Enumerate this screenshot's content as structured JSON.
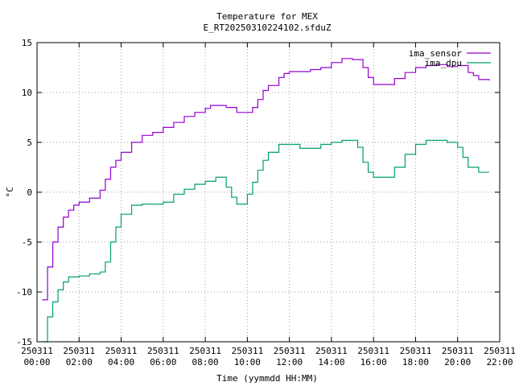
{
  "chart_data": {
    "type": "line",
    "title": "Temperature for MEX",
    "subtitle": "E_RT20250310224102.sfduZ",
    "xlabel": "Time (yymmdd HH:MM)",
    "ylabel": "°C",
    "ylim": [
      -15,
      15
    ],
    "yticks": [
      "-15",
      "-10",
      "-5",
      "0",
      "5",
      "10",
      "15"
    ],
    "xlim": [
      0,
      22
    ],
    "xticks": [
      {
        "date": "250311",
        "time": "00:00"
      },
      {
        "date": "250311",
        "time": "02:00"
      },
      {
        "date": "250311",
        "time": "04:00"
      },
      {
        "date": "250311",
        "time": "06:00"
      },
      {
        "date": "250311",
        "time": "08:00"
      },
      {
        "date": "250311",
        "time": "10:00"
      },
      {
        "date": "250311",
        "time": "12:00"
      },
      {
        "date": "250311",
        "time": "14:00"
      },
      {
        "date": "250311",
        "time": "16:00"
      },
      {
        "date": "250311",
        "time": "18:00"
      },
      {
        "date": "250311",
        "time": "20:00"
      },
      {
        "date": "250311",
        "time": "22:00"
      }
    ],
    "grid": true,
    "legend_position": "top-right",
    "series": [
      {
        "name": "ima_sensor",
        "color": "#9400d3",
        "x": [
          0.25,
          0.5,
          0.75,
          1.0,
          1.25,
          1.5,
          1.75,
          2.0,
          2.5,
          3.0,
          3.25,
          3.5,
          3.75,
          4.0,
          4.5,
          5.0,
          5.5,
          6.0,
          6.5,
          7.0,
          7.5,
          8.0,
          8.25,
          9.0,
          9.5,
          10.0,
          10.25,
          10.5,
          10.75,
          11.0,
          11.5,
          11.75,
          12.0,
          13.0,
          13.5,
          14.0,
          14.5,
          15.0,
          15.5,
          15.75,
          16.0,
          16.5,
          17.0,
          17.5,
          18.0,
          18.5,
          19.0,
          19.5,
          20.0,
          20.5,
          20.75,
          21.0,
          21.5
        ],
        "values": [
          -10.8,
          -7.5,
          -5.0,
          -3.5,
          -2.5,
          -1.8,
          -1.3,
          -1.0,
          -0.6,
          0.2,
          1.3,
          2.5,
          3.2,
          4.0,
          5.0,
          5.7,
          6.0,
          6.5,
          7.0,
          7.6,
          8.0,
          8.4,
          8.7,
          8.5,
          8.0,
          8.0,
          8.5,
          9.3,
          10.2,
          10.7,
          11.5,
          11.9,
          12.1,
          12.3,
          12.5,
          13.0,
          13.4,
          13.3,
          12.5,
          11.5,
          10.8,
          10.8,
          11.4,
          12.0,
          12.5,
          12.7,
          12.8,
          12.6,
          12.7,
          12.0,
          11.7,
          11.3,
          11.2
        ]
      },
      {
        "name": "ima_dpu",
        "color": "#009e73",
        "x": [
          0.25,
          0.5,
          0.75,
          1.0,
          1.25,
          1.5,
          2.0,
          2.5,
          3.0,
          3.25,
          3.5,
          3.75,
          4.0,
          4.5,
          5.0,
          5.5,
          6.0,
          6.5,
          7.0,
          7.5,
          8.0,
          8.5,
          9.0,
          9.25,
          9.5,
          9.75,
          10.0,
          10.25,
          10.5,
          10.75,
          11.0,
          11.5,
          12.0,
          12.5,
          13.0,
          13.5,
          14.0,
          14.5,
          15.0,
          15.25,
          15.5,
          15.75,
          16.0,
          16.5,
          17.0,
          17.5,
          18.0,
          18.5,
          19.0,
          19.5,
          20.0,
          20.25,
          20.5,
          21.0,
          21.5
        ],
        "values": [
          -15.0,
          -12.5,
          -11.0,
          -9.8,
          -9.0,
          -8.5,
          -8.4,
          -8.2,
          -8.0,
          -7.0,
          -5.0,
          -3.5,
          -2.2,
          -1.3,
          -1.2,
          -1.2,
          -1.0,
          -0.2,
          0.3,
          0.8,
          1.1,
          1.5,
          0.5,
          -0.5,
          -1.2,
          -1.2,
          -0.2,
          1.0,
          2.2,
          3.2,
          4.0,
          4.8,
          4.8,
          4.4,
          4.4,
          4.8,
          5.0,
          5.2,
          5.2,
          4.5,
          3.0,
          2.0,
          1.5,
          1.5,
          2.5,
          3.8,
          4.8,
          5.2,
          5.2,
          5.0,
          4.5,
          3.5,
          2.5,
          2.0,
          2.0
        ]
      }
    ]
  }
}
